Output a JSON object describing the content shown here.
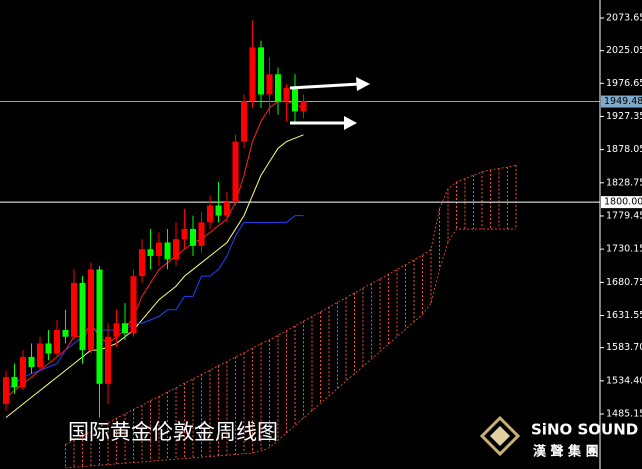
{
  "chart_data": {
    "type": "candlestick",
    "title": "国际黄金伦敦金周线图",
    "ylim": [
      1403.4,
      2100.4
    ],
    "yticks": [
      2073.65,
      2025.05,
      1976.65,
      1927.35,
      1878.05,
      1828.75,
      1779.45,
      1730.15,
      1680.75,
      1631.55,
      {
        "value": 1583.7,
        "label": "1583.70"
      },
      {
        "value": 1534.4,
        "label": "1534.40"
      },
      1485.15
    ],
    "up_color": "#ff0000",
    "down_color": "#00ff00",
    "open": [
      1500,
      1540,
      1525,
      1570,
      1555,
      1590,
      1575,
      1610,
      1600,
      1680,
      1580,
      1700,
      1530,
      1600,
      1620,
      1605,
      1690,
      1730,
      1720,
      1740,
      1715,
      1745,
      1760,
      1735,
      1770,
      1795,
      1780,
      1800,
      1890,
      1950,
      2030,
      1960,
      1990,
      1950,
      1970,
      1935
    ],
    "high": [
      1550,
      1560,
      1580,
      1590,
      1600,
      1610,
      1625,
      1640,
      1700,
      1690,
      1710,
      1705,
      1620,
      1640,
      1650,
      1700,
      1745,
      1760,
      1755,
      1760,
      1770,
      1790,
      1780,
      1785,
      1810,
      1830,
      1815,
      1900,
      1960,
      2070,
      2040,
      2015,
      2000,
      1975,
      1990,
      1960
    ],
    "low": [
      1490,
      1515,
      1520,
      1545,
      1550,
      1565,
      1570,
      1590,
      1595,
      1560,
      1575,
      1480,
      1500,
      1585,
      1595,
      1600,
      1680,
      1700,
      1705,
      1700,
      1705,
      1730,
      1720,
      1725,
      1760,
      1770,
      1770,
      1795,
      1880,
      1940,
      1940,
      1930,
      1930,
      1920,
      1915,
      1925
    ],
    "close": [
      1540,
      1525,
      1570,
      1555,
      1590,
      1575,
      1610,
      1600,
      1680,
      1580,
      1700,
      1530,
      1600,
      1620,
      1605,
      1690,
      1730,
      1720,
      1740,
      1715,
      1745,
      1760,
      1735,
      1770,
      1795,
      1780,
      1800,
      1890,
      1950,
      2030,
      1960,
      1990,
      1950,
      1970,
      1935,
      1950
    ],
    "overlays": [
      {
        "color": "#ff2020",
        "values": [
          1510,
          1520,
          1530,
          1540,
          1550,
          1560,
          1570,
          1580,
          1600,
          1600,
          1620,
          1600,
          1590,
          1600,
          1610,
          1630,
          1660,
          1680,
          1700,
          1710,
          1720,
          1730,
          1740,
          1745,
          1755,
          1765,
          1775,
          1800,
          1840,
          1890,
          1920,
          1940,
          1950,
          1950,
          1945,
          1940
        ]
      },
      {
        "color": "#ffff80",
        "values": [
          1480,
          1490,
          1500,
          1510,
          1520,
          1530,
          1540,
          1550,
          1560,
          1570,
          1580,
          1580,
          1585,
          1590,
          1600,
          1610,
          1625,
          1640,
          1655,
          1665,
          1675,
          1690,
          1700,
          1710,
          1720,
          1730,
          1740,
          1760,
          1780,
          1810,
          1840,
          1860,
          1880,
          1890,
          1895,
          1900
        ]
      },
      {
        "color": "#2040ff",
        "values": [
          1520,
          1530,
          1540,
          1545,
          1550,
          1555,
          1560,
          1580,
          1590,
          1600,
          1610,
          1610,
          1610,
          1610,
          1610,
          1620,
          1620,
          1625,
          1630,
          1640,
          1640,
          1660,
          1660,
          1690,
          1690,
          1700,
          1720,
          1750,
          1770,
          1770,
          1770,
          1770,
          1770,
          1770,
          1780,
          1780
        ]
      }
    ],
    "cloud": {
      "color": "#ff5030",
      "upper": [
        null,
        null,
        null,
        null,
        null,
        null,
        null,
        1440,
        1446,
        1453,
        1459,
        1466,
        1472,
        1479,
        1485,
        1492,
        1498,
        1505,
        1511,
        1518,
        1524,
        1531,
        1537,
        1544,
        1550,
        1557,
        1563,
        1570,
        1576,
        1583,
        1590,
        1595,
        1602,
        1609,
        1616,
        1623,
        1630,
        1637,
        1644,
        1651,
        1658,
        1665,
        1672,
        1679,
        1686,
        1693,
        1700,
        1707,
        1714,
        1721,
        1730,
        1790,
        1820,
        1830,
        1835,
        1840,
        1845,
        1848,
        1850,
        1852,
        1855
      ],
      "lower": [
        null,
        null,
        null,
        null,
        null,
        null,
        null,
        1405,
        1406,
        1407,
        1408,
        1409,
        1410,
        1411,
        1412,
        1413,
        1414,
        1415,
        1416,
        1417,
        1418,
        1419,
        1420,
        1421,
        1422,
        1423,
        1424,
        1425,
        1426,
        1427,
        1430,
        1435,
        1446,
        1457,
        1468,
        1479,
        1490,
        1501,
        1512,
        1523,
        1534,
        1545,
        1556,
        1567,
        1578,
        1589,
        1600,
        1611,
        1622,
        1633,
        1650,
        1700,
        1740,
        1760,
        1760,
        1760,
        1760,
        1760,
        1760,
        1760,
        1760
      ]
    },
    "price_lines": [
      {
        "value": 1949.48,
        "label": "1949.48",
        "color": "#7fa9c9"
      },
      {
        "value": 1800,
        "label": "1800.00",
        "color": "#ffffff"
      }
    ]
  },
  "logo": {
    "brand": "SiNO SOUND",
    "name": "漢 聲 集 團"
  }
}
